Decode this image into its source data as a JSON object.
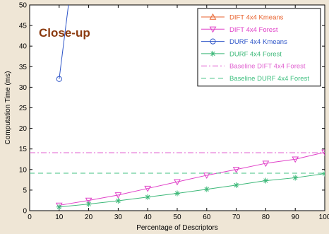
{
  "chart_data": {
    "type": "line",
    "annotation": "Close-up",
    "annotation_color": "#8b3a0f",
    "xlabel": "Percentage of Descriptors",
    "ylabel": "Computation Time (ms)",
    "xlim": [
      0,
      100
    ],
    "ylim": [
      0,
      50
    ],
    "xticks": [
      0,
      10,
      20,
      30,
      40,
      50,
      60,
      70,
      80,
      90,
      100
    ],
    "yticks": [
      0,
      5,
      10,
      15,
      20,
      25,
      30,
      35,
      40,
      45,
      50
    ],
    "grid": false,
    "legend_position": "top-right",
    "series": [
      {
        "name": "DIFT 4x4 Kmeans",
        "color": "#e8612c",
        "marker": "triangle-up",
        "dash": "solid",
        "x": [],
        "y": []
      },
      {
        "name": "DIFT 4x4 Forest",
        "color": "#e040c8",
        "marker": "triangle-down",
        "dash": "solid",
        "x": [
          10,
          20,
          30,
          40,
          50,
          60,
          70,
          80,
          90,
          100
        ],
        "y": [
          1.3,
          2.5,
          3.8,
          5.4,
          7.0,
          8.6,
          10.0,
          11.5,
          12.5,
          14.2
        ]
      },
      {
        "name": "DURF 4x4 Kmeans",
        "color": "#2e55c8",
        "marker": "circle",
        "dash": "solid",
        "x": [
          10,
          13.5
        ],
        "y": [
          32,
          52
        ]
      },
      {
        "name": "DURF 4x4 Forest",
        "color": "#3cb878",
        "marker": "star",
        "dash": "solid",
        "x": [
          10,
          20,
          30,
          40,
          50,
          60,
          70,
          80,
          90,
          100
        ],
        "y": [
          0.9,
          1.6,
          2.4,
          3.3,
          4.2,
          5.2,
          6.2,
          7.3,
          8.0,
          9.0
        ]
      },
      {
        "name": "Baseline DIFT 4x4 Forest",
        "color": "#e060d0",
        "marker": "none",
        "dash": "dashdot",
        "x": [
          0,
          100
        ],
        "y": [
          14.1,
          14.1
        ]
      },
      {
        "name": "Baseline DURF 4x4 Forest",
        "color": "#40c080",
        "marker": "none",
        "dash": "dashed",
        "x": [
          0,
          100
        ],
        "y": [
          9.1,
          9.1
        ]
      }
    ]
  }
}
